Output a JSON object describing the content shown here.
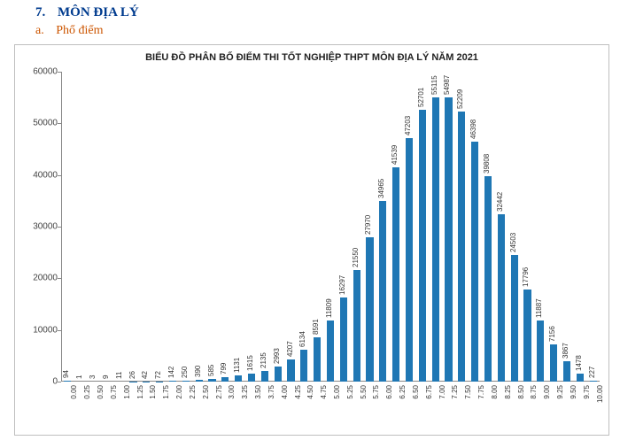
{
  "header": {
    "number": "7.",
    "title": "MÔN ĐỊA LÝ",
    "sub_letter": "a.",
    "sub_title": "Phổ điểm",
    "title_color": "#003b8e",
    "sub_color": "#cc5500"
  },
  "chart": {
    "type": "bar",
    "title": "BIỂU ĐỒ PHÂN BỐ ĐIỂM THI TỐT NGHIỆP THPT MÔN ĐỊA LÝ NĂM 2021",
    "title_fontsize": 11,
    "title_color": "#222222",
    "bar_color": "#1f77b4",
    "background_color": "#ffffff",
    "border_color": "#bfbfbf",
    "axis_color": "#888888",
    "label_color": "#333333",
    "label_fontsize": 8,
    "ylim": [
      0,
      60000
    ],
    "ytick_step": 10000,
    "yticks": [
      "0",
      "10000",
      "20000",
      "30000",
      "40000",
      "50000",
      "60000"
    ],
    "bar_width_ratio": 0.55,
    "categories": [
      "0.00",
      "0.25",
      "0.50",
      "0.75",
      "1.00",
      "1.25",
      "1.50",
      "1.75",
      "2.00",
      "2.25",
      "2.50",
      "2.75",
      "3.00",
      "3.25",
      "3.50",
      "3.75",
      "4.00",
      "4.25",
      "4.50",
      "4.75",
      "5.00",
      "5.25",
      "5.50",
      "5.75",
      "6.00",
      "6.25",
      "6.50",
      "6.75",
      "7.00",
      "7.25",
      "7.50",
      "7.75",
      "8.00",
      "8.25",
      "8.50",
      "8.75",
      "9.00",
      "9.25",
      "9.50",
      "9.75",
      "10.00"
    ],
    "values": [
      94,
      1,
      3,
      9,
      11,
      26,
      42,
      72,
      142,
      250,
      390,
      585,
      799,
      1131,
      1615,
      2135,
      2993,
      4207,
      6134,
      8591,
      11809,
      16297,
      21550,
      27970,
      34965,
      41539,
      47203,
      52701,
      55115,
      54987,
      52209,
      46398,
      39808,
      32442,
      24503,
      17796,
      11887,
      7156,
      3867,
      1478,
      227
    ]
  }
}
